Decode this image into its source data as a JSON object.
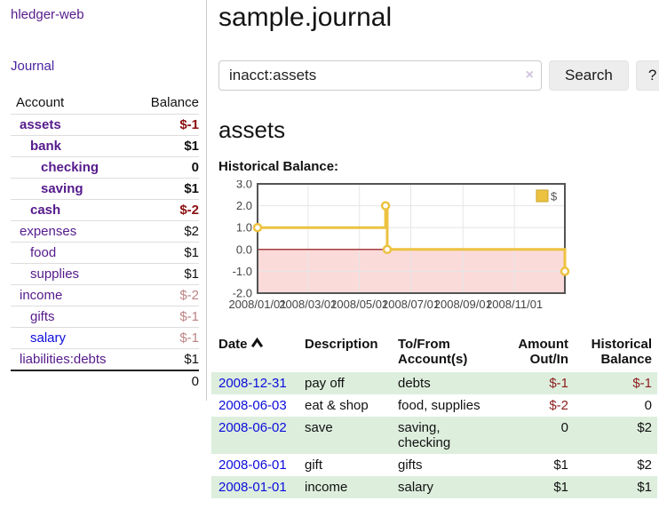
{
  "sidebar": {
    "brand": "hledger-web",
    "nav": {
      "journal": "Journal"
    },
    "accounts": {
      "headers": {
        "account": "Account",
        "balance": "Balance"
      },
      "rows": [
        {
          "name": "assets",
          "balance": "$-1",
          "depth": 1,
          "bold": true,
          "neg": "strong"
        },
        {
          "name": "bank",
          "balance": "$1",
          "depth": 2,
          "bold": true
        },
        {
          "name": "checking",
          "balance": "0",
          "depth": 3,
          "bold": true
        },
        {
          "name": "saving",
          "balance": "$1",
          "depth": 3,
          "bold": true
        },
        {
          "name": "cash",
          "balance": "$-2",
          "depth": 2,
          "bold": true,
          "neg": "strong"
        },
        {
          "name": "expenses",
          "balance": "$2",
          "depth": 1
        },
        {
          "name": "food",
          "balance": "$1",
          "depth": 2
        },
        {
          "name": "supplies",
          "balance": "$1",
          "depth": 2
        },
        {
          "name": "income",
          "balance": "$-2",
          "depth": 1,
          "neg": "soft"
        },
        {
          "name": "gifts",
          "balance": "$-1",
          "depth": 2,
          "neg": "soft"
        },
        {
          "name": "salary",
          "balance": "$-1",
          "depth": 2,
          "neg": "soft",
          "blue": true
        },
        {
          "name": "liabilities:debts",
          "balance": "$1",
          "depth": 1
        }
      ],
      "total": "0"
    }
  },
  "main": {
    "title": "sample.journal",
    "search": {
      "value": "inacct:assets",
      "clear_icon": "×",
      "button": "Search",
      "help_button": "?"
    },
    "account_heading": "assets",
    "transactions": {
      "headers": {
        "date": "Date",
        "description": "Description",
        "accounts": "To/From Account(s)",
        "amount": "Amount Out/In",
        "balance": "Historical Balance"
      },
      "rows": [
        {
          "date": "2008-12-31",
          "description": "pay off",
          "accounts": "debts",
          "amount": "$-1",
          "balance": "$-1"
        },
        {
          "date": "2008-06-03",
          "description": "eat & shop",
          "accounts": "food, supplies",
          "amount": "$-2",
          "balance": "0"
        },
        {
          "date": "2008-06-02",
          "description": "save",
          "accounts": "saving, checking",
          "amount": "0",
          "balance": "$2"
        },
        {
          "date": "2008-06-01",
          "description": "gift",
          "accounts": "gifts",
          "amount": "$1",
          "balance": "$2"
        },
        {
          "date": "2008-01-01",
          "description": "income",
          "accounts": "salary",
          "amount": "$1",
          "balance": "$1"
        }
      ]
    }
  },
  "chart_data": {
    "type": "line",
    "title": "Historical Balance:",
    "legend": [
      {
        "name": "$",
        "position": "top-right"
      }
    ],
    "x_ticks": [
      "2008/01/01",
      "2008/03/01",
      "2008/05/01",
      "2008/07/01",
      "2008/09/01",
      "2008/11/01"
    ],
    "y_ticks": [
      3.0,
      2.0,
      1.0,
      0.0,
      -1.0,
      -2.0
    ],
    "ylim": [
      -2,
      3
    ],
    "xlim": [
      "2008-01-01",
      "2008-12-31"
    ],
    "grid": true,
    "series": [
      {
        "name": "$",
        "step": true,
        "points": [
          {
            "x": "2008-01-01",
            "y": 1
          },
          {
            "x": "2008-06-01",
            "y": 2
          },
          {
            "x": "2008-06-03",
            "y": 0
          },
          {
            "x": "2008-12-31",
            "y": -1
          }
        ]
      }
    ],
    "colors": {
      "line": "#edc240",
      "marker_fill": "#ffffff",
      "legend_border": "#c9a227",
      "negative_region": "#fbdada",
      "zero_line": "#8b0000",
      "grid": "#e6e6e6",
      "plot_border": "#545454",
      "tick_text": "#444444"
    }
  },
  "colors": {
    "link_purple": "#551a8b",
    "link_blue": "#0c0cdc",
    "negative_strong": "#8b0f0f",
    "negative_soft": "#bd8484",
    "row_stripe_green": "#ddeedd"
  }
}
